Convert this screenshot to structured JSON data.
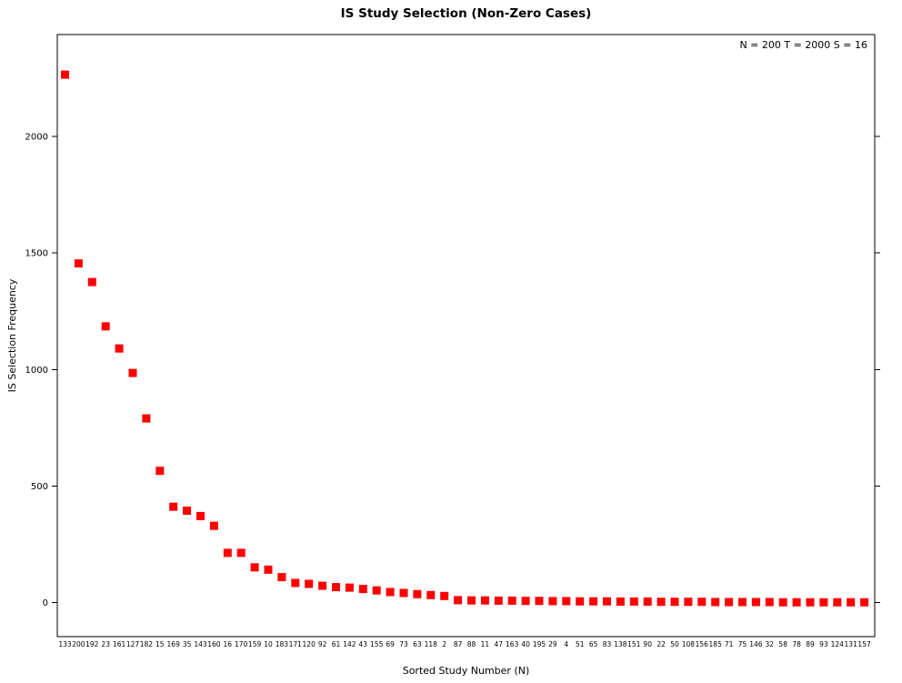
{
  "title": "IS Study Selection (Non-Zero Cases)",
  "annotation": "N = 200  T = 2000  S = 16",
  "chart_data": {
    "type": "scatter",
    "title": "IS Study Selection (Non-Zero Cases)",
    "xlabel": "Sorted Study Number (N)",
    "ylabel": "IS Selection Frequency",
    "annotation": "N = 200  T = 2000  S = 16",
    "marker": "filled-square",
    "point_color": "#ff0000",
    "axis_color": "#000000",
    "grid": false,
    "legend_position": "none",
    "ylim": [
      0,
      2350
    ],
    "yticks": [
      0,
      500,
      1000,
      1500,
      2000
    ],
    "ytick_labels": [
      "0",
      "500",
      "1000",
      "1500",
      "2000"
    ],
    "categories": [
      133,
      200,
      192,
      23,
      161,
      127,
      182,
      15,
      169,
      35,
      143,
      160,
      16,
      170,
      159,
      10,
      183,
      171,
      120,
      92,
      61,
      142,
      43,
      155,
      69,
      73,
      63,
      118,
      2,
      87,
      88,
      11,
      47,
      163,
      40,
      195,
      29,
      4,
      51,
      65,
      83,
      138,
      151,
      90,
      22,
      50,
      108,
      156,
      185,
      71,
      75,
      146,
      32,
      58,
      78,
      89,
      93,
      124,
      131,
      157
    ],
    "values": [
      2265,
      1455,
      1375,
      1185,
      1090,
      985,
      790,
      565,
      411,
      394,
      371,
      329,
      213,
      213,
      151,
      141,
      109,
      84,
      80,
      72,
      66,
      64,
      58,
      52,
      45,
      41,
      36,
      32,
      28,
      10,
      9,
      9,
      8,
      8,
      7,
      7,
      6,
      6,
      5,
      5,
      5,
      4,
      4,
      4,
      3,
      3,
      3,
      3,
      2,
      2,
      2,
      2,
      2,
      1,
      1,
      1,
      1,
      1,
      1,
      1
    ]
  }
}
